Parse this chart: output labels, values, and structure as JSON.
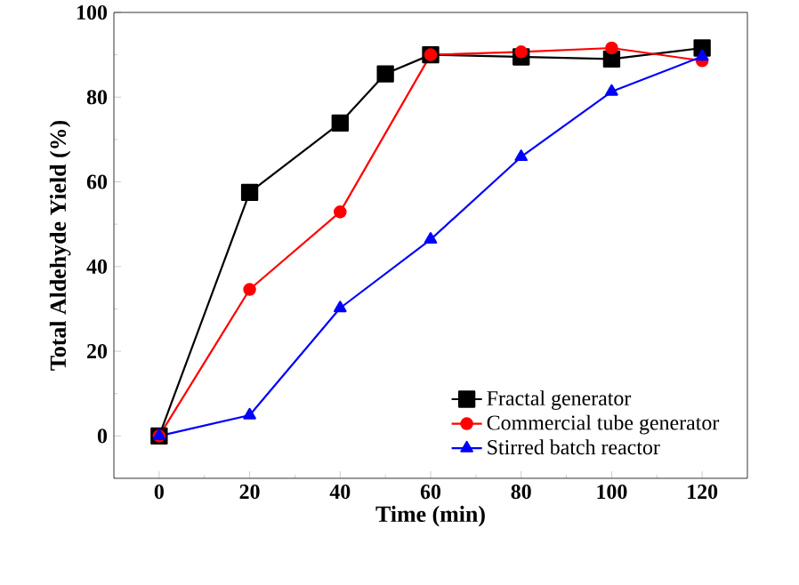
{
  "chart_data": {
    "type": "line",
    "xlabel": "Time (min)",
    "ylabel": "Total Aldehyde Yield (%)",
    "xlim": [
      -10,
      130
    ],
    "xticks": [
      0,
      20,
      40,
      60,
      80,
      100,
      120
    ],
    "ylim": [
      -10,
      100
    ],
    "yticks": [
      0,
      20,
      40,
      60,
      80,
      100
    ],
    "grid": false,
    "legend": "bottom right",
    "line_style": "solid",
    "series": [
      {
        "name": "Fractal generator",
        "color": "#000000",
        "marker": "square",
        "x": [
          0,
          20,
          40,
          50,
          60,
          80,
          100,
          120
        ],
        "values": [
          0,
          57.5,
          73.9,
          85.5,
          90,
          89.5,
          89,
          91.6
        ]
      },
      {
        "name": "Commercial tube generator",
        "color": "#ff0000",
        "marker": "circle",
        "x": [
          0,
          20,
          40,
          60,
          80,
          100,
          120
        ],
        "values": [
          0,
          34.6,
          52.9,
          90,
          90.7,
          91.6,
          88.6
        ]
      },
      {
        "name": "Stirred batch reactor",
        "color": "#0000ff",
        "marker": "triangle",
        "x": [
          0,
          20,
          40,
          60,
          80,
          100,
          120
        ],
        "values": [
          0,
          4.9,
          30.2,
          46.4,
          65.9,
          81.3,
          89.6
        ]
      }
    ]
  }
}
